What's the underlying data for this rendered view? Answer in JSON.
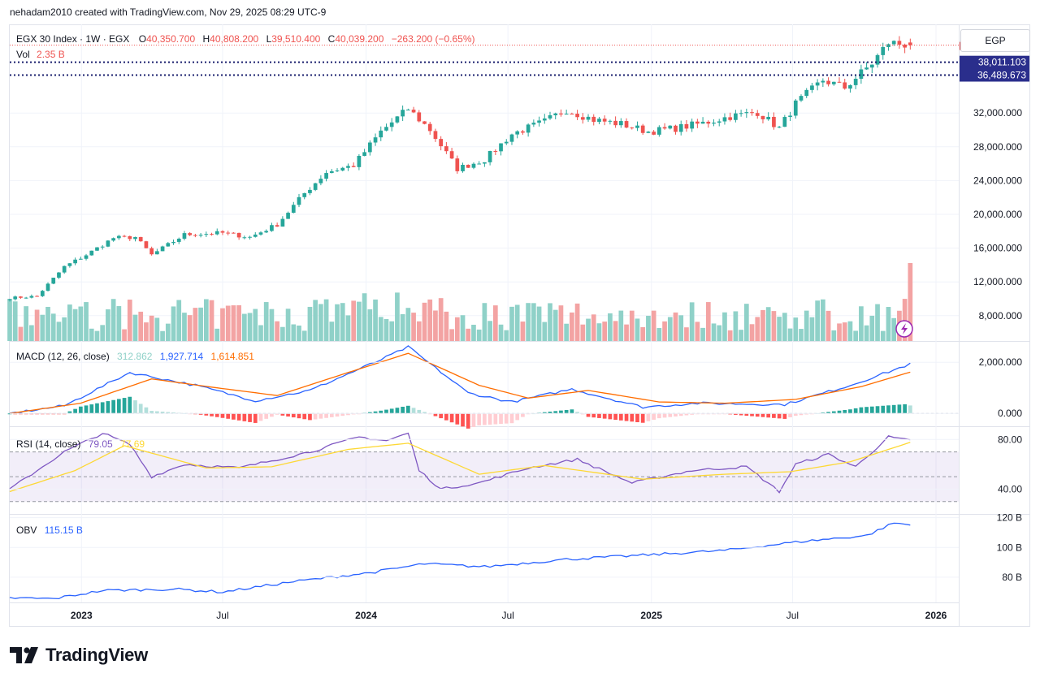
{
  "header": {
    "created_line": "nehadam2010 created with TradingView.com, Nov 29, 2025 08:29 UTC-9",
    "currency": "EGP"
  },
  "legend": {
    "symbol": "EGX 30 Index · 1W · EGX",
    "o_label": "O",
    "o_value": "40,350.700",
    "h_label": "H",
    "h_value": "40,808.200",
    "l_label": "L",
    "l_value": "39,510.400",
    "c_label": "C",
    "c_value": "40,039.200",
    "change": "−263.200 (−0.65%)",
    "vol_label": "Vol",
    "vol_value": "2.35 B"
  },
  "price_labels": {
    "level1": "38,011.103",
    "level2": "36,489.673"
  },
  "panes": {
    "macd": {
      "label": "MACD (12, 26, close)",
      "hist": "312.862",
      "macd": "1,927.714",
      "signal": "1,614.851"
    },
    "rsi": {
      "label": "RSI (14, close)",
      "rsi": "79.05",
      "ma": "77.69"
    },
    "obv": {
      "label": "OBV",
      "value": "115.15 B"
    }
  },
  "footer": {
    "brand": "TradingView"
  },
  "colors": {
    "up": "#26a69a",
    "down": "#ef5350",
    "vol_up": "#8fd1c8",
    "vol_down": "#f3a3a3",
    "macd_line": "#2962ff",
    "signal_line": "#ff6d00",
    "rsi_line": "#7e57c2",
    "rsi_ma": "#fdd835",
    "obv_line": "#2962ff",
    "label_bg": "#2a2e8c"
  },
  "chart_data": [
    {
      "type": "candlestick",
      "series": [
        {
          "name": "EGX 30 Index · 1W · EGX",
          "anchors": [
            [
              "2022-10-01",
              10100
            ],
            [
              "2022-11-05",
              10300
            ],
            [
              "2022-12-10",
              13800
            ],
            [
              "2023-01-07",
              15200
            ],
            [
              "2023-02-11",
              17200
            ],
            [
              "2023-03-11",
              17300
            ],
            [
              "2023-04-01",
              15200
            ],
            [
              "2023-05-13",
              17600
            ],
            [
              "2023-07-01",
              17800
            ],
            [
              "2023-08-05",
              17300
            ],
            [
              "2023-09-09",
              18800
            ],
            [
              "2023-10-14",
              22500
            ],
            [
              "2023-11-11",
              25000
            ],
            [
              "2023-12-16",
              25800
            ],
            [
              "2024-01-20",
              29800
            ],
            [
              "2024-02-24",
              32500
            ],
            [
              "2024-03-23",
              30000
            ],
            [
              "2024-04-27",
              25400
            ],
            [
              "2024-06-01",
              26500
            ],
            [
              "2024-07-06",
              29500
            ],
            [
              "2024-08-17",
              31000
            ],
            [
              "2024-09-14",
              32400
            ],
            [
              "2024-10-19",
              31200
            ],
            [
              "2024-11-23",
              30700
            ],
            [
              "2024-12-28",
              29800
            ],
            [
              "2025-02-01",
              30200
            ],
            [
              "2025-03-08",
              30800
            ],
            [
              "2025-04-12",
              31600
            ],
            [
              "2025-05-17",
              32100
            ],
            [
              "2025-06-14",
              30200
            ],
            [
              "2025-07-05",
              33100
            ],
            [
              "2025-08-09",
              35900
            ],
            [
              "2025-09-06",
              35000
            ],
            [
              "2025-10-11",
              37900
            ],
            [
              "2025-11-01",
              40350
            ],
            [
              "2025-11-29",
              40039
            ]
          ]
        }
      ],
      "last": {
        "open": 40350.7,
        "high": 40808.2,
        "low": 39510.4,
        "close": 40039.2
      },
      "horizontal_levels": [
        38011.103,
        36489.673
      ],
      "y_ticks": [
        8000,
        12000,
        16000,
        20000,
        24000,
        28000,
        32000
      ],
      "y_tick_labels": [
        "8,000.000",
        "12,000.000",
        "16,000.000",
        "20,000.000",
        "24,000.000",
        "28,000.000",
        "32,000.000"
      ],
      "ylim": [
        5000,
        42500
      ],
      "x_tick_labels": [
        "2023",
        "Jul",
        "2024",
        "Jul",
        "2025",
        "Jul",
        "2026"
      ],
      "x_tick_dates": [
        "2023-01-01",
        "2023-07-01",
        "2024-01-01",
        "2024-07-01",
        "2025-01-01",
        "2025-07-01",
        "2026-01-01"
      ],
      "volume_last": "2.35 B"
    },
    {
      "type": "line",
      "title": "MACD (12, 26, close)",
      "series": [
        {
          "name": "MACD",
          "anchors": [
            [
              "2022-10-01",
              0
            ],
            [
              "2022-12-10",
              300
            ],
            [
              "2023-03-04",
              1600
            ],
            [
              "2023-05-27",
              1100
            ],
            [
              "2023-08-12",
              500
            ],
            [
              "2023-10-21",
              900
            ],
            [
              "2024-01-20",
              2100
            ],
            [
              "2024-02-24",
              2600
            ],
            [
              "2024-05-11",
              800
            ],
            [
              "2024-07-06",
              450
            ],
            [
              "2024-09-21",
              950
            ],
            [
              "2024-12-21",
              250
            ],
            [
              "2025-03-01",
              400
            ],
            [
              "2025-06-21",
              350
            ],
            [
              "2025-09-13",
              1100
            ],
            [
              "2025-11-29",
              1927.714
            ]
          ]
        },
        {
          "name": "Signal",
          "anchors": [
            [
              "2022-10-01",
              0
            ],
            [
              "2022-12-31",
              400
            ],
            [
              "2023-04-01",
              1350
            ],
            [
              "2023-06-24",
              1000
            ],
            [
              "2023-09-09",
              700
            ],
            [
              "2023-12-09",
              1600
            ],
            [
              "2024-02-24",
              2350
            ],
            [
              "2024-05-25",
              1100
            ],
            [
              "2024-07-27",
              600
            ],
            [
              "2024-10-12",
              900
            ],
            [
              "2025-01-11",
              450
            ],
            [
              "2025-04-05",
              400
            ],
            [
              "2025-07-05",
              550
            ],
            [
              "2025-09-27",
              1050
            ],
            [
              "2025-11-29",
              1614.851
            ]
          ]
        }
      ],
      "histogram_last": 312.862,
      "y_ticks": [
        0,
        2000
      ],
      "y_tick_labels": [
        "0.000",
        "2,000.000"
      ],
      "ylim": [
        -500,
        2800
      ]
    },
    {
      "type": "line",
      "title": "RSI (14, close)",
      "series": [
        {
          "name": "RSI",
          "anchors": [
            [
              "2022-10-01",
              40
            ],
            [
              "2022-12-10",
              70
            ],
            [
              "2023-01-28",
              85
            ],
            [
              "2023-03-04",
              76
            ],
            [
              "2023-04-01",
              50
            ],
            [
              "2023-05-13",
              60
            ],
            [
              "2023-07-22",
              57
            ],
            [
              "2023-10-21",
              70
            ],
            [
              "2023-12-23",
              82
            ],
            [
              "2024-01-27",
              79
            ],
            [
              "2024-02-24",
              85
            ],
            [
              "2024-03-09",
              55
            ],
            [
              "2024-04-06",
              40
            ],
            [
              "2024-05-25",
              45
            ],
            [
              "2024-07-27",
              57
            ],
            [
              "2024-09-28",
              64
            ],
            [
              "2024-12-07",
              45
            ],
            [
              "2025-02-22",
              55
            ],
            [
              "2025-05-03",
              58
            ],
            [
              "2025-06-14",
              38
            ],
            [
              "2025-07-05",
              60
            ],
            [
              "2025-08-16",
              68
            ],
            [
              "2025-09-20",
              58
            ],
            [
              "2025-11-01",
              82
            ],
            [
              "2025-11-29",
              79.05
            ]
          ]
        },
        {
          "name": "RSI MA",
          "anchors": [
            [
              "2022-10-01",
              38
            ],
            [
              "2022-12-24",
              55
            ],
            [
              "2023-02-25",
              75
            ],
            [
              "2023-06-10",
              57
            ],
            [
              "2023-09-02",
              58
            ],
            [
              "2023-12-09",
              72
            ],
            [
              "2024-02-24",
              77
            ],
            [
              "2024-05-25",
              52
            ],
            [
              "2024-08-17",
              59
            ],
            [
              "2024-12-21",
              48
            ],
            [
              "2025-04-05",
              52
            ],
            [
              "2025-06-28",
              54
            ],
            [
              "2025-09-13",
              62
            ],
            [
              "2025-11-29",
              77.69
            ]
          ]
        }
      ],
      "bands": [
        30,
        50,
        70
      ],
      "y_ticks": [
        40,
        80
      ],
      "y_tick_labels": [
        "40.00",
        "80.00"
      ],
      "ylim": [
        20,
        90
      ]
    },
    {
      "type": "line",
      "title": "OBV",
      "series": [
        {
          "name": "OBV",
          "anchors": [
            [
              "2022-10-01",
              66
            ],
            [
              "2022-11-26",
              65.5
            ],
            [
              "2023-01-28",
              71
            ],
            [
              "2023-04-29",
              72
            ],
            [
              "2023-07-01",
              70
            ],
            [
              "2023-09-30",
              77
            ],
            [
              "2024-01-06",
              83
            ],
            [
              "2024-03-16",
              89
            ],
            [
              "2024-06-01",
              87
            ],
            [
              "2024-09-14",
              92
            ],
            [
              "2024-12-28",
              95
            ],
            [
              "2025-04-05",
              98
            ],
            [
              "2025-07-12",
              104
            ],
            [
              "2025-10-04",
              108
            ],
            [
              "2025-11-08",
              116.5
            ],
            [
              "2025-11-29",
              115.15
            ]
          ]
        }
      ],
      "y_ticks": [
        80,
        100,
        120
      ],
      "y_tick_labels": [
        "80 B",
        "100 B",
        "120 B"
      ],
      "ylim": [
        63,
        122
      ]
    }
  ]
}
